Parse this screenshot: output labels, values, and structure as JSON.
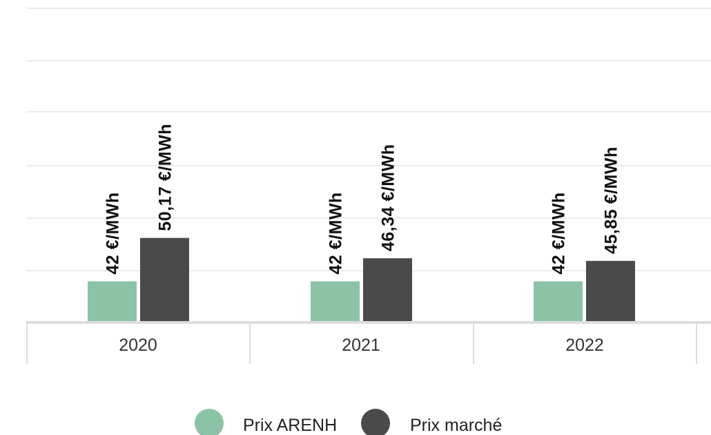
{
  "chart_data": {
    "type": "bar",
    "categories": [
      "2020",
      "2021",
      "2022"
    ],
    "series": [
      {
        "name": "Prix ARENH",
        "color": "#8cc2a5",
        "values": [
          42,
          42,
          42
        ],
        "labels": [
          "42 €/MWh",
          "42 €/MWh",
          "42 €/MWh"
        ]
      },
      {
        "name": "Prix marché",
        "color": "#4a4a4a",
        "values": [
          50.17,
          46.34,
          45.85
        ],
        "labels": [
          "50,17 €/MWh",
          "46,34 €/MWh",
          "45,85 €/MWh"
        ]
      }
    ],
    "title": "",
    "xlabel": "",
    "ylabel": "",
    "ylim": [
      34.4,
      64
    ],
    "grid": true,
    "legend": "bottom-center"
  }
}
